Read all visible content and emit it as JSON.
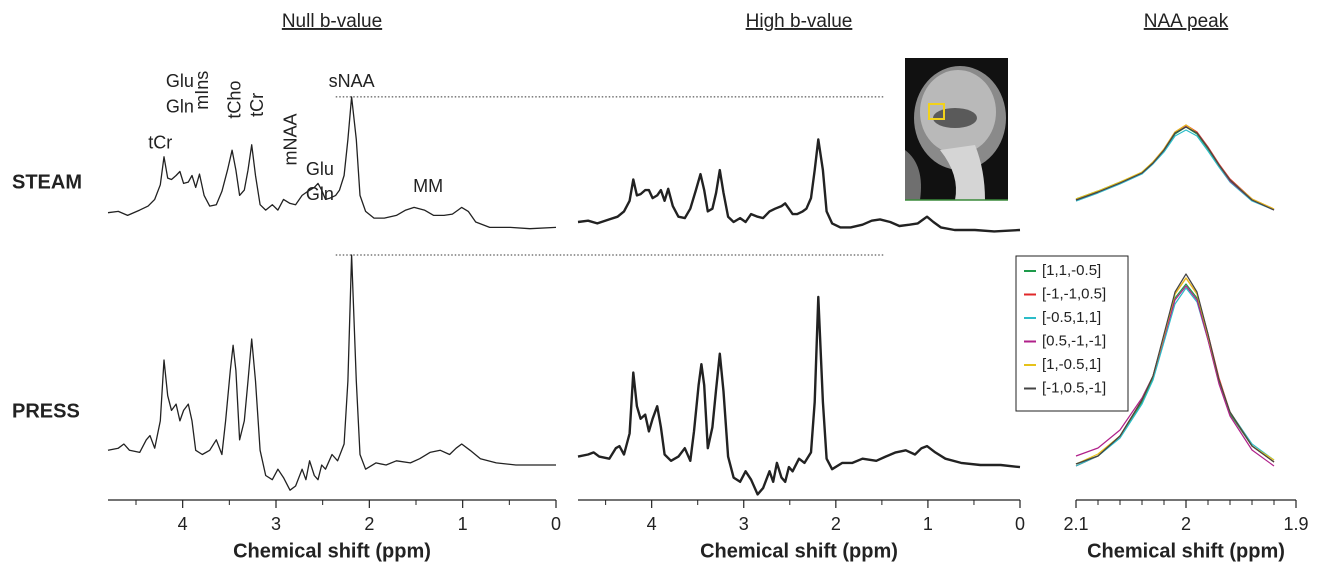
{
  "chart_data": [
    {
      "type": "line",
      "title": "Null b-value",
      "row_label": "STEAM",
      "x": [
        4.8,
        4.69,
        4.59,
        4.46,
        4.37,
        4.3,
        4.24,
        4.2,
        4.16,
        4.12,
        4.07,
        4.03,
        3.99,
        3.94,
        3.9,
        3.86,
        3.82,
        3.77,
        3.71,
        3.64,
        3.58,
        3.52,
        3.47,
        3.43,
        3.39,
        3.34,
        3.3,
        3.26,
        3.22,
        3.17,
        3.11,
        3.04,
        2.98,
        2.92,
        2.85,
        2.79,
        2.72,
        2.66,
        2.59,
        2.55,
        2.51,
        2.47,
        2.42,
        2.36,
        2.32,
        2.27,
        2.23,
        2.19,
        2.14,
        2.1,
        2.04,
        1.95,
        1.84,
        1.71,
        1.61,
        1.52,
        1.41,
        1.31,
        1.2,
        1.11,
        1.05,
        1.01,
        0.94,
        0.86,
        0.71,
        0.49,
        0.28,
        0.0
      ],
      "series": [
        {
          "color": "#222222",
          "values": [
            13,
            14,
            11,
            15,
            18,
            23,
            34,
            55,
            39,
            38,
            41,
            44,
            35,
            36,
            41,
            32,
            42,
            26,
            18,
            19,
            29,
            45,
            60,
            45,
            26,
            30,
            45,
            64,
            41,
            19,
            15,
            19,
            15,
            23,
            20,
            19,
            26,
            29,
            32,
            35,
            30,
            23,
            24,
            26,
            30,
            41,
            68,
            100,
            68,
            26,
            14,
            9,
            9,
            11,
            15,
            17,
            15,
            11,
            11,
            12,
            15,
            17,
            14,
            6,
            2,
            2,
            1,
            2
          ]
        }
      ],
      "xlim": [
        4.8,
        0
      ],
      "ylim": [
        -15,
        130
      ],
      "reference_line": 100,
      "annotations": [
        {
          "text": "tCr",
          "x": 4.24,
          "y": 65
        },
        {
          "text": "Glu",
          "x": 4.03,
          "y": 111
        },
        {
          "text": "Gln",
          "x": 4.03,
          "y": 92
        },
        {
          "text": "mIns",
          "x": 3.78,
          "y": 105,
          "orientation": "vertical"
        },
        {
          "text": "tCho",
          "x": 3.43,
          "y": 98,
          "orientation": "vertical"
        },
        {
          "text": "tCr",
          "x": 3.19,
          "y": 94,
          "orientation": "vertical"
        },
        {
          "text": "mNAA",
          "x": 2.83,
          "y": 68,
          "orientation": "vertical"
        },
        {
          "text": "Glu",
          "x": 2.53,
          "y": 45
        },
        {
          "text": "Gln",
          "x": 2.53,
          "y": 26
        },
        {
          "text": "sNAA",
          "x": 2.19,
          "y": 111
        },
        {
          "text": "MM",
          "x": 1.37,
          "y": 32
        }
      ]
    },
    {
      "type": "line",
      "row_label": "PRESS",
      "xlabel": "Chemical shift (ppm)",
      "x": [
        4.8,
        4.69,
        4.63,
        4.57,
        4.46,
        4.39,
        4.35,
        4.3,
        4.24,
        4.2,
        4.16,
        4.12,
        4.07,
        4.03,
        3.99,
        3.94,
        3.9,
        3.86,
        3.79,
        3.71,
        3.64,
        3.58,
        3.54,
        3.49,
        3.46,
        3.43,
        3.39,
        3.34,
        3.3,
        3.26,
        3.22,
        3.17,
        3.11,
        3.04,
        2.98,
        2.92,
        2.85,
        2.79,
        2.72,
        2.68,
        2.64,
        2.59,
        2.55,
        2.51,
        2.47,
        2.4,
        2.34,
        2.27,
        2.23,
        2.19,
        2.14,
        2.1,
        2.04,
        1.93,
        1.82,
        1.71,
        1.56,
        1.46,
        1.35,
        1.24,
        1.14,
        1.07,
        1.01,
        0.92,
        0.81,
        0.64,
        0.43,
        0.21,
        0.0
      ],
      "series": [
        {
          "color": "#222222",
          "values": [
            7,
            8,
            10,
            7,
            6,
            12,
            14,
            8,
            21,
            50,
            33,
            26,
            29,
            21,
            26,
            29,
            21,
            7,
            5,
            7,
            12,
            5,
            21,
            45,
            57,
            45,
            12,
            21,
            40,
            60,
            40,
            7,
            -5,
            -7,
            -2,
            -6,
            -12,
            -10,
            -2,
            -7,
            2,
            -5,
            -7,
            0,
            -2,
            5,
            2,
            10,
            40,
            100,
            40,
            5,
            -2,
            1,
            0,
            2,
            1,
            3,
            6,
            7,
            5,
            8,
            10,
            7,
            3,
            1,
            0,
            0,
            0
          ]
        }
      ],
      "xlim": [
        4.8,
        0
      ],
      "ylim": [
        -15,
        100
      ],
      "reference_line": 100,
      "xticks": [
        4,
        3,
        2,
        1,
        0
      ],
      "xminor": [
        4.5,
        3.5,
        2.5,
        1.5,
        0.5
      ]
    },
    {
      "type": "line",
      "title": "High b-value",
      "x": [
        4.8,
        4.69,
        4.59,
        4.46,
        4.37,
        4.3,
        4.24,
        4.2,
        4.16,
        4.12,
        4.07,
        4.03,
        3.99,
        3.94,
        3.9,
        3.86,
        3.82,
        3.77,
        3.71,
        3.64,
        3.58,
        3.52,
        3.47,
        3.43,
        3.39,
        3.34,
        3.3,
        3.26,
        3.22,
        3.17,
        3.11,
        3.04,
        2.98,
        2.92,
        2.85,
        2.79,
        2.72,
        2.66,
        2.59,
        2.55,
        2.51,
        2.47,
        2.42,
        2.36,
        2.32,
        2.27,
        2.23,
        2.19,
        2.14,
        2.1,
        2.04,
        1.95,
        1.84,
        1.71,
        1.61,
        1.52,
        1.41,
        1.31,
        1.2,
        1.11,
        1.05,
        1.01,
        0.94,
        0.86,
        0.71,
        0.49,
        0.28,
        0.0
      ],
      "series": [
        {
          "color": "#222222",
          "values": [
            6,
            7,
            5,
            8,
            10,
            14,
            22,
            38,
            26,
            27,
            30,
            30,
            24,
            26,
            30,
            22,
            31,
            18,
            10,
            9,
            16,
            30,
            42,
            30,
            14,
            16,
            28,
            45,
            28,
            10,
            6,
            9,
            6,
            12,
            10,
            9,
            14,
            16,
            18,
            20,
            16,
            12,
            12,
            14,
            16,
            24,
            45,
            68,
            45,
            14,
            5,
            2,
            2,
            4,
            7,
            8,
            6,
            3,
            4,
            5,
            8,
            10,
            6,
            2,
            0,
            0,
            -1,
            0
          ]
        }
      ],
      "xlim": [
        4.8,
        0
      ],
      "ylim": [
        -15,
        130
      ]
    },
    {
      "type": "line",
      "xlabel": "Chemical shift (ppm)",
      "x": [
        4.8,
        4.69,
        4.63,
        4.57,
        4.46,
        4.39,
        4.35,
        4.3,
        4.24,
        4.2,
        4.16,
        4.12,
        4.07,
        4.03,
        3.99,
        3.94,
        3.9,
        3.86,
        3.79,
        3.71,
        3.64,
        3.58,
        3.54,
        3.49,
        3.46,
        3.43,
        3.39,
        3.34,
        3.3,
        3.26,
        3.22,
        3.17,
        3.11,
        3.04,
        2.98,
        2.92,
        2.85,
        2.79,
        2.72,
        2.68,
        2.64,
        2.59,
        2.55,
        2.51,
        2.47,
        2.4,
        2.34,
        2.27,
        2.23,
        2.19,
        2.14,
        2.1,
        2.04,
        1.93,
        1.82,
        1.71,
        1.56,
        1.46,
        1.35,
        1.24,
        1.14,
        1.07,
        1.01,
        0.92,
        0.81,
        0.64,
        0.43,
        0.21,
        0.0
      ],
      "series": [
        {
          "color": "#222222",
          "values": [
            4,
            5,
            6,
            4,
            3,
            8,
            9,
            5,
            15,
            44,
            28,
            22,
            24,
            16,
            22,
            28,
            18,
            5,
            2,
            4,
            8,
            2,
            16,
            38,
            48,
            38,
            8,
            18,
            36,
            53,
            35,
            4,
            -6,
            -8,
            -3,
            -7,
            -14,
            -11,
            -3,
            -8,
            1,
            -6,
            -8,
            -1,
            -3,
            3,
            1,
            6,
            30,
            80,
            30,
            3,
            -2,
            1,
            1,
            3,
            2,
            4,
            6,
            7,
            5,
            8,
            9,
            6,
            3,
            1,
            0,
            0,
            -1
          ]
        }
      ],
      "xlim": [
        4.8,
        0
      ],
      "ylim": [
        -15,
        100
      ],
      "xticks": [
        4,
        3,
        2,
        1,
        0
      ],
      "xminor": [
        4.5,
        3.5,
        2.5,
        1.5,
        0.5
      ]
    },
    {
      "type": "line",
      "title": "NAA peak",
      "x": [
        2.1,
        2.08,
        2.06,
        2.04,
        2.03,
        2.02,
        2.01,
        2.0,
        1.99,
        1.98,
        1.97,
        1.96,
        1.94,
        1.92
      ],
      "series": [
        {
          "color": "#1e9a4a",
          "values": [
            16,
            24,
            33,
            42,
            52,
            64,
            81,
            88,
            81,
            66,
            49,
            34,
            15,
            5
          ]
        },
        {
          "color": "#e0282a",
          "values": [
            15,
            23,
            32,
            42,
            53,
            66,
            83,
            90,
            83,
            68,
            51,
            36,
            16,
            6
          ]
        },
        {
          "color": "#2bbcc8",
          "values": [
            14,
            22,
            31,
            41,
            51,
            63,
            79,
            85,
            79,
            64,
            48,
            33,
            14,
            5
          ]
        },
        {
          "color": "#b0208a",
          "values": [
            15,
            23,
            32,
            42,
            52,
            65,
            82,
            89,
            82,
            67,
            50,
            34,
            15,
            5
          ]
        },
        {
          "color": "#e6c21a",
          "values": [
            16,
            24,
            33,
            43,
            53,
            66,
            83,
            90,
            82,
            67,
            50,
            35,
            16,
            6
          ]
        },
        {
          "color": "#444444",
          "values": [
            15,
            23,
            32,
            42,
            52,
            65,
            82,
            88,
            82,
            67,
            50,
            35,
            15,
            5
          ]
        }
      ],
      "xlim": [
        2.1,
        1.9
      ],
      "ylim": [
        0,
        100
      ]
    },
    {
      "type": "line",
      "xlabel": "Chemical shift (ppm)",
      "legend": "left",
      "x": [
        2.1,
        2.08,
        2.06,
        2.04,
        2.03,
        2.02,
        2.01,
        2.0,
        1.99,
        1.98,
        1.97,
        1.96,
        1.94,
        1.92
      ],
      "series": [
        {
          "name": "[1,1,-0.5]",
          "color": "#1e9a4a",
          "values": [
            3,
            7,
            17,
            34,
            46,
            66,
            86,
            93,
            86,
            66,
            44,
            28,
            12,
            4
          ]
        },
        {
          "name": "[-1,-1,0.5]",
          "color": "#e0282a",
          "values": [
            2,
            7,
            17,
            35,
            47,
            67,
            88,
            96,
            88,
            68,
            46,
            29,
            12,
            4
          ]
        },
        {
          "name": "[-0.5,1,1]",
          "color": "#2bbcc8",
          "values": [
            2,
            7,
            16,
            33,
            45,
            64,
            83,
            91,
            84,
            65,
            44,
            29,
            13,
            5
          ]
        },
        {
          "name": "[0.5,-1,-1]",
          "color": "#b0208a",
          "values": [
            7,
            11,
            20,
            36,
            47,
            66,
            85,
            92,
            85,
            65,
            43,
            27,
            10,
            2
          ]
        },
        {
          "name": "[1,-0.5,1]",
          "color": "#e6c21a",
          "values": [
            3,
            8,
            17,
            35,
            47,
            67,
            88,
            96,
            88,
            67,
            45,
            29,
            12,
            5
          ]
        },
        {
          "name": "[-1,0.5,-1]",
          "color": "#444444",
          "values": [
            3,
            7,
            17,
            35,
            47,
            68,
            89,
            98,
            89,
            68,
            45,
            29,
            12,
            4
          ]
        }
      ],
      "xlim": [
        2.1,
        1.9
      ],
      "ylim": [
        0,
        100
      ],
      "xticks": [
        2.1,
        2,
        1.9
      ],
      "xminor": [
        2.08,
        2.06,
        2.04,
        2.02,
        1.98,
        1.96,
        1.94,
        1.92
      ]
    }
  ]
}
